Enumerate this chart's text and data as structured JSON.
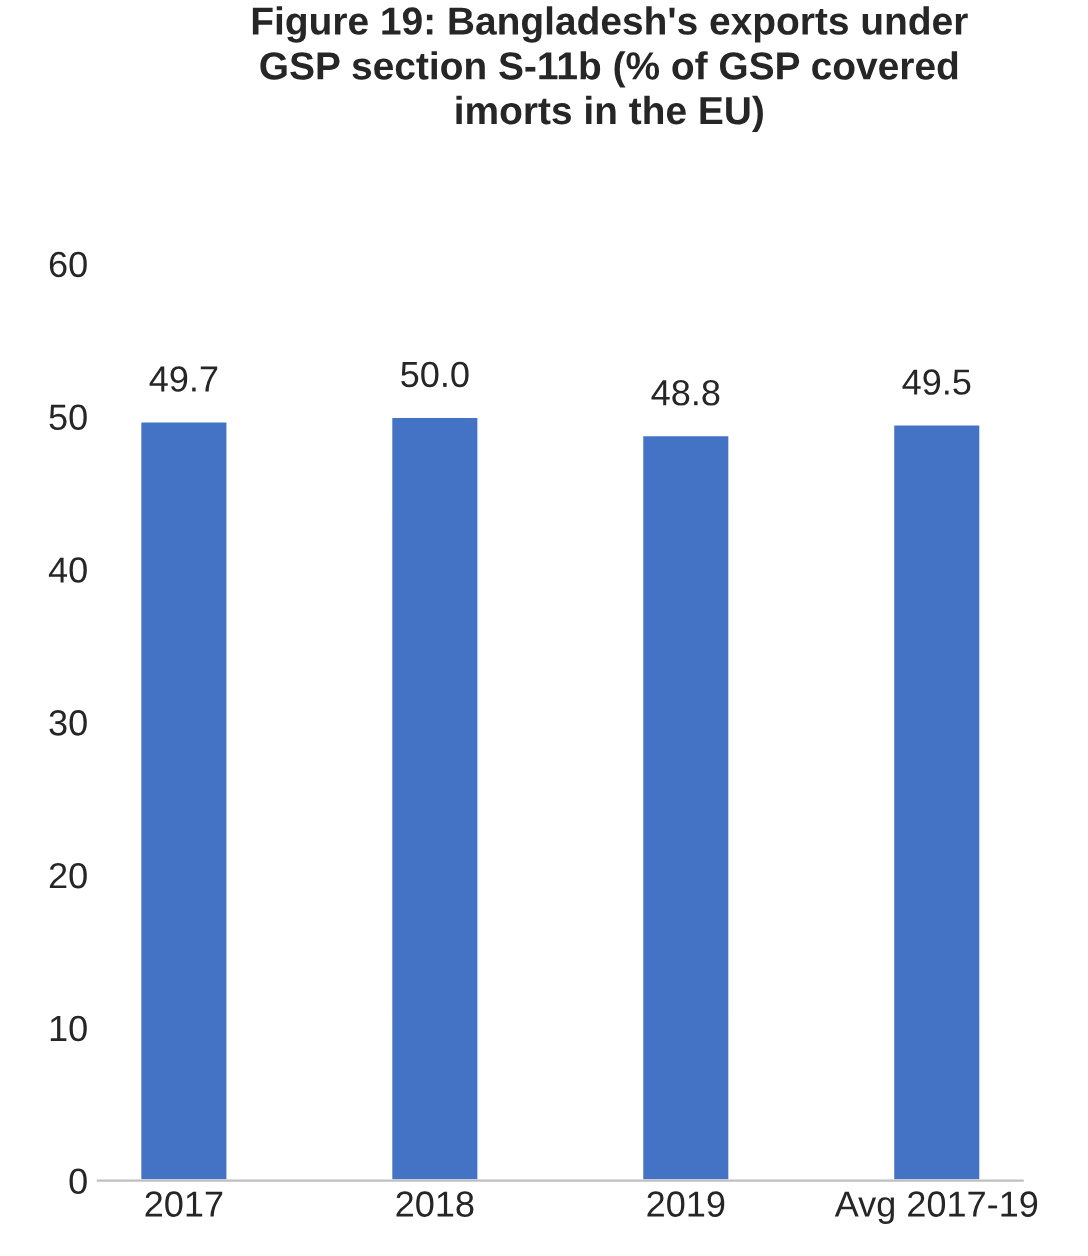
{
  "chart_data": {
    "type": "bar",
    "title": "Figure 19: Bangladesh's exports under\nGSP section S-11b (% of GSP covered\nimorts in the EU)",
    "categories": [
      "2017",
      "2018",
      "2019",
      "Avg 2017-19"
    ],
    "values": [
      49.7,
      50.0,
      48.8,
      49.5
    ],
    "value_labels": [
      "49.7",
      "50.0",
      "48.8",
      "49.5"
    ],
    "color": "#4472c4",
    "ylim": [
      0,
      60
    ],
    "yticks": [
      0,
      10,
      20,
      30,
      40,
      50,
      60
    ],
    "grid": false,
    "legend": false
  }
}
